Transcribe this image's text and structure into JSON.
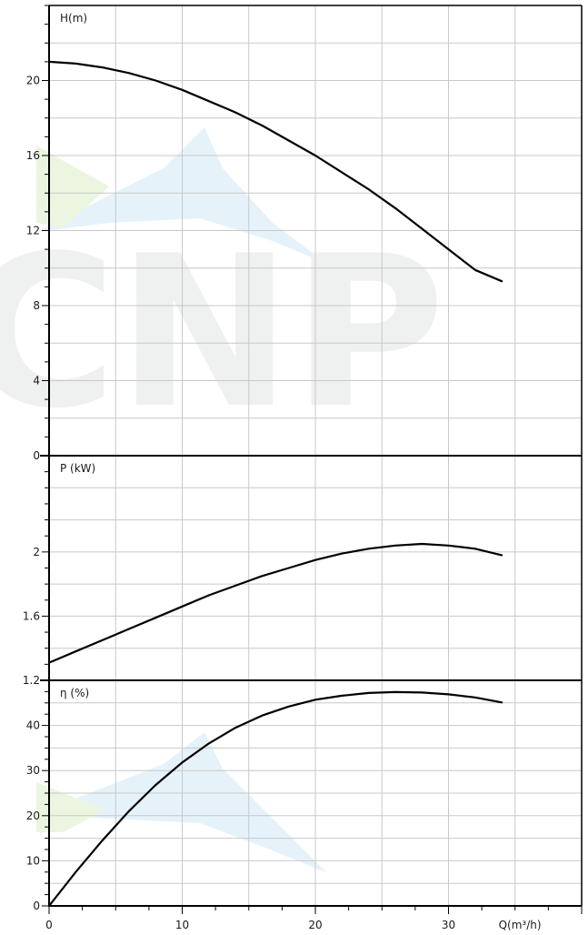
{
  "watermark": {
    "text": "CNP"
  },
  "x_axis": {
    "title": "Q(m³/h)",
    "min": 0,
    "max": 40,
    "ticks": [
      0,
      10,
      20,
      30
    ]
  },
  "chart_data": [
    {
      "type": "line",
      "title": "H(m)",
      "ylabel": "H(m)",
      "xlim": [
        0,
        40
      ],
      "ylim": [
        0,
        24
      ],
      "yticks": [
        "0",
        "4",
        "8",
        "12",
        "16",
        "20"
      ],
      "grid": true,
      "series": [
        {
          "x": [
            0,
            2,
            4,
            6,
            8,
            10,
            12,
            14,
            16,
            18,
            20,
            22,
            24,
            26,
            28,
            30,
            32,
            34
          ],
          "y": [
            21.0,
            20.9,
            20.7,
            20.4,
            20.0,
            19.5,
            18.9,
            18.3,
            17.6,
            16.8,
            16.0,
            15.1,
            14.2,
            13.2,
            12.1,
            11.0,
            9.9,
            9.3
          ]
        }
      ]
    },
    {
      "type": "line",
      "title": "P (kW)",
      "ylabel": "P (kW)",
      "xlim": [
        0,
        40
      ],
      "ylim": [
        1.2,
        2.6
      ],
      "yticks": [
        "1.2",
        "1.6",
        "2"
      ],
      "grid": true,
      "series": [
        {
          "x": [
            0,
            2,
            4,
            6,
            8,
            10,
            12,
            14,
            16,
            18,
            20,
            22,
            24,
            26,
            28,
            30,
            32,
            34
          ],
          "y": [
            1.31,
            1.38,
            1.45,
            1.52,
            1.59,
            1.66,
            1.73,
            1.79,
            1.85,
            1.9,
            1.95,
            1.99,
            2.02,
            2.04,
            2.05,
            2.04,
            2.02,
            1.98
          ]
        }
      ]
    },
    {
      "type": "line",
      "title": "η (%)",
      "ylabel": "η (%)",
      "xlim": [
        0,
        40
      ],
      "ylim": [
        0,
        50
      ],
      "yticks": [
        "0",
        "10",
        "20",
        "30",
        "40"
      ],
      "grid": true,
      "series": [
        {
          "x": [
            0,
            2,
            4,
            6,
            8,
            10,
            12,
            14,
            16,
            18,
            20,
            22,
            24,
            26,
            28,
            30,
            32,
            34
          ],
          "y": [
            0,
            7.5,
            14.5,
            21.0,
            26.8,
            31.8,
            36.0,
            39.5,
            42.2,
            44.2,
            45.7,
            46.6,
            47.2,
            47.4,
            47.3,
            46.9,
            46.2,
            45.1
          ]
        }
      ]
    }
  ]
}
